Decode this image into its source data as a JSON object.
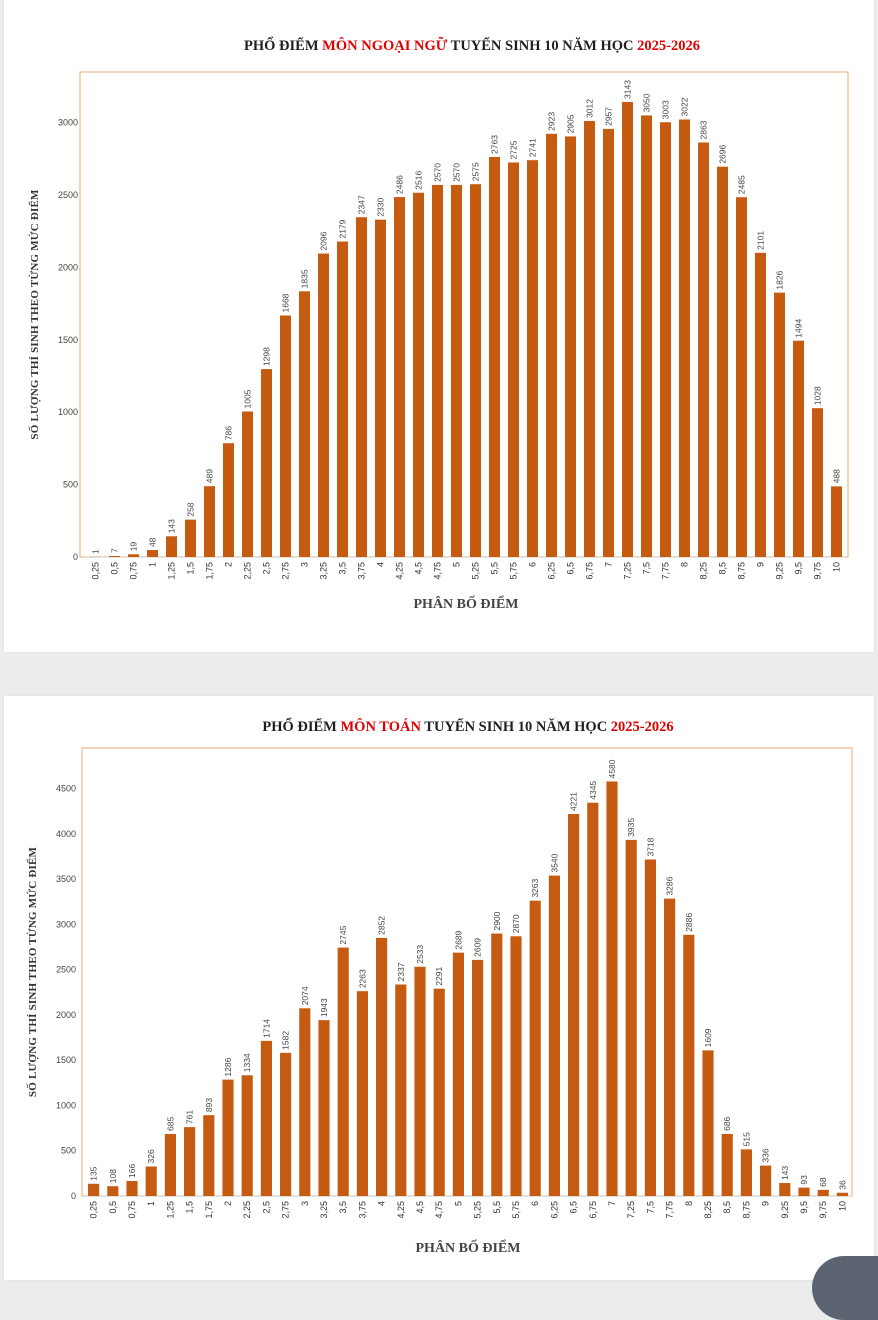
{
  "colors": {
    "bar": "#c55a11",
    "title_dark": "#1f1f1f",
    "title_accent": "#e00000",
    "frame": "#f0b889"
  },
  "x_label_text": "PHÂN BỐ ĐIỂM",
  "y_label_text": "SỐ LƯỢNG THÍ SINH THEO TỪNG MỨC ĐIỂM",
  "chart_data": [
    {
      "type": "bar",
      "title_parts": [
        "PHỔ ĐIỂM ",
        "MÔN NGOẠI NGỮ",
        " TUYỂN SINH 10 NĂM HỌC ",
        "2025-2026"
      ],
      "xlabel": "PHÂN BỐ ĐIỂM",
      "ylabel": "SỐ LƯỢNG THÍ SINH THEO TỪNG MỨC ĐIỂM",
      "ylim": [
        0,
        3350
      ],
      "yticks": [
        0,
        500,
        1000,
        1500,
        2000,
        2500,
        3000
      ],
      "categories": [
        "0,25",
        "0,5",
        "0,75",
        "1",
        "1,25",
        "1,5",
        "1,75",
        "2",
        "2,25",
        "2,5",
        "2,75",
        "3",
        "3,25",
        "3,5",
        "3,75",
        "4",
        "4,25",
        "4,5",
        "4,75",
        "5",
        "5,25",
        "5,5",
        "5,75",
        "6",
        "6,25",
        "6,5",
        "6,75",
        "7",
        "7,25",
        "7,5",
        "7,75",
        "8",
        "8,25",
        "8,5",
        "8,75",
        "9",
        "9,25",
        "9,5",
        "9,75",
        "10"
      ],
      "values": [
        1,
        7,
        19,
        48,
        143,
        258,
        489,
        786,
        1005,
        1298,
        1668,
        1835,
        2096,
        2179,
        2347,
        2330,
        2486,
        2516,
        2570,
        2570,
        2575,
        2763,
        2725,
        2741,
        2923,
        2905,
        3012,
        2957,
        3143,
        3050,
        3003,
        3022,
        2863,
        2696,
        2485,
        2101,
        1826,
        1494,
        1028,
        488
      ]
    },
    {
      "type": "bar",
      "title_parts": [
        "PHỔ ĐIỂM ",
        "MÔN TOÁN",
        " TUYỂN SINH 10 NĂM HỌC ",
        "2025-2026"
      ],
      "xlabel": "PHÂN BỐ ĐIỂM",
      "ylabel": "SỐ LƯỢNG THÍ SINH THEO TỪNG MỨC ĐIỂM",
      "ylim": [
        0,
        4950
      ],
      "yticks": [
        0,
        500,
        1000,
        1500,
        2000,
        2500,
        3000,
        3500,
        4000,
        4500
      ],
      "categories": [
        "0,25",
        "0,5",
        "0,75",
        "1",
        "1,25",
        "1,5",
        "1,75",
        "2",
        "2,25",
        "2,5",
        "2,75",
        "3",
        "3,25",
        "3,5",
        "3,75",
        "4",
        "4,25",
        "4,5",
        "4,75",
        "5",
        "5,25",
        "5,5",
        "5,75",
        "6",
        "6,25",
        "6,5",
        "6,75",
        "7",
        "7,25",
        "7,5",
        "7,75",
        "8",
        "8,25",
        "8,5",
        "8,75",
        "9",
        "9,25",
        "9,5",
        "9,75",
        "10"
      ],
      "values": [
        135,
        108,
        166,
        326,
        685,
        761,
        893,
        1286,
        1334,
        1714,
        1582,
        2074,
        1943,
        2745,
        2263,
        2852,
        2337,
        2533,
        2291,
        2689,
        2609,
        2900,
        2870,
        3263,
        3540,
        4221,
        4345,
        4580,
        3935,
        3718,
        3286,
        2886,
        1609,
        686,
        515,
        336,
        143,
        93,
        68,
        36
      ]
    }
  ]
}
